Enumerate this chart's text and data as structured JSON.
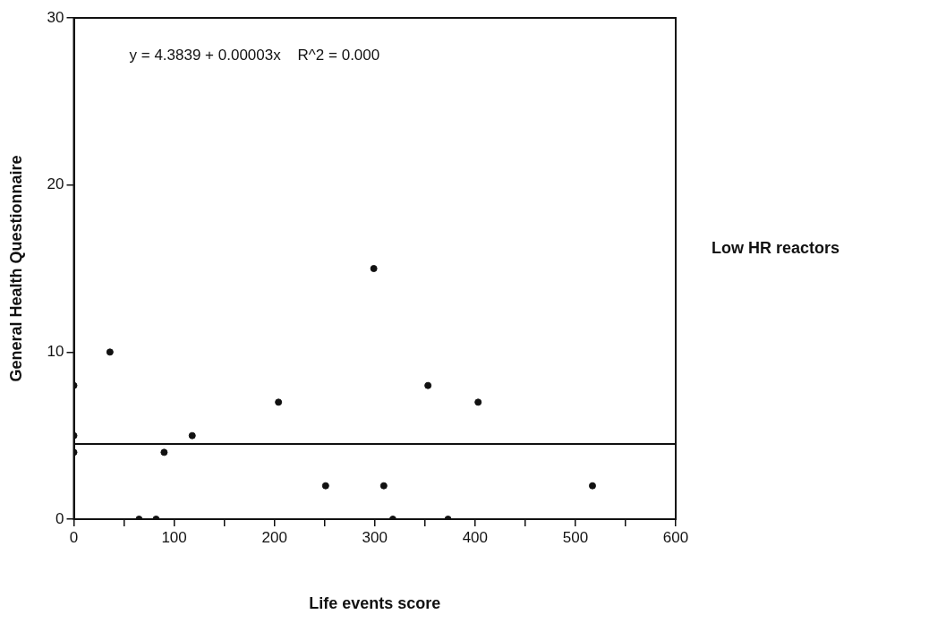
{
  "chart_data": {
    "type": "scatter",
    "title": "Low HR reactors",
    "xlabel": "Life events score",
    "ylabel": "General Health Questionnaire",
    "annotations": [
      "y = 4.3839 + 0.00003x    R^2 = 0.000"
    ],
    "xlim": [
      0,
      600
    ],
    "ylim": [
      0,
      30
    ],
    "xticks": [
      0,
      {
        "value": 50,
        "label": null
      },
      100,
      {
        "value": 150,
        "label": null
      },
      200,
      {
        "value": 250,
        "label": null
      },
      300,
      {
        "value": 350,
        "label": null
      },
      400,
      {
        "value": 450,
        "label": null
      },
      500,
      {
        "value": 550,
        "label": null
      },
      600
    ],
    "yticks": [
      0,
      10,
      20,
      30
    ],
    "grid": false,
    "legend": false,
    "marker": "circle",
    "series": [
      {
        "color": "#111111",
        "x": [
          0,
          0,
          0,
          36,
          65,
          82,
          90,
          118,
          204,
          251,
          299,
          309,
          318,
          353,
          373,
          403,
          517
        ],
        "values": [
          8,
          5,
          4,
          10,
          0,
          0,
          4,
          5,
          7,
          2,
          15,
          2,
          0,
          8,
          0,
          7,
          2
        ]
      },
      {
        "type": "line",
        "color": "#111111",
        "line_style": "solid",
        "marker": "none",
        "x": [
          0,
          600
        ],
        "values": [
          4.5,
          4.5
        ]
      }
    ]
  }
}
